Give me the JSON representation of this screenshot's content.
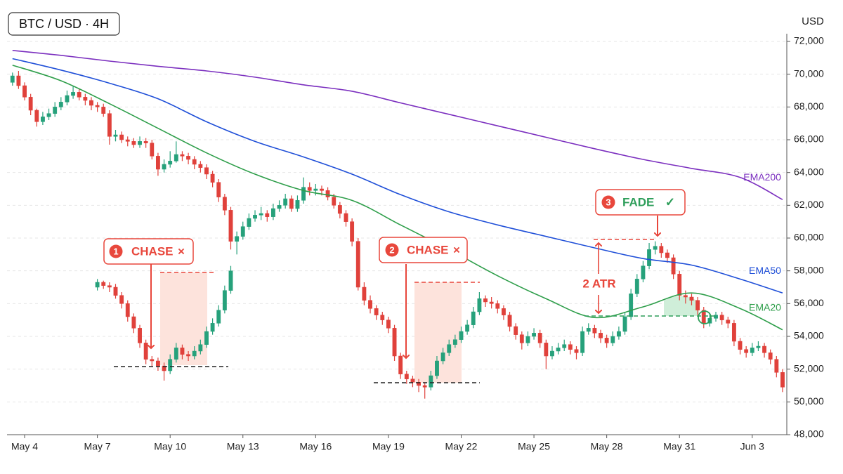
{
  "chart_data": {
    "type": "candlestick",
    "title": "BTC / USD · 4H",
    "y_label": "USD",
    "xlim": [
      -0.9,
      127.7
    ],
    "ylim": [
      48000,
      72000
    ],
    "grid": true,
    "up_color": "#26a17b",
    "down_color": "#e0413b",
    "xticks": [
      {
        "value": 2,
        "label": "May 4"
      },
      {
        "value": 14,
        "label": "May 7"
      },
      {
        "value": 26,
        "label": "May 10"
      },
      {
        "value": 38,
        "label": "May 13"
      },
      {
        "value": 50,
        "label": "May 16"
      },
      {
        "value": 62,
        "label": "May 19"
      },
      {
        "value": 74,
        "label": "May 22"
      },
      {
        "value": 86,
        "label": "May 25"
      },
      {
        "value": 98,
        "label": "May 28"
      },
      {
        "value": 110,
        "label": "May 31"
      },
      {
        "value": 122,
        "label": "Jun 3"
      }
    ],
    "yticks": [
      {
        "value": 48000,
        "label": "48,000"
      },
      {
        "value": 50000,
        "label": "50,000"
      },
      {
        "value": 52000,
        "label": "52,000"
      },
      {
        "value": 54000,
        "label": "54,000"
      },
      {
        "value": 56000,
        "label": "56,000"
      },
      {
        "value": 58000,
        "label": "58,000"
      },
      {
        "value": 60000,
        "label": "60,000"
      },
      {
        "value": 62000,
        "label": "62,000"
      },
      {
        "value": 64000,
        "label": "64,000"
      },
      {
        "value": 66000,
        "label": "66,000"
      },
      {
        "value": 68000,
        "label": "68,000"
      },
      {
        "value": 70000,
        "label": "70,000"
      },
      {
        "value": 72000,
        "label": "72,000"
      }
    ],
    "candles": [
      {
        "x": [
          0,
          1,
          2,
          3,
          4,
          5,
          6,
          7,
          8,
          9,
          10,
          11,
          12,
          13,
          14,
          15,
          16,
          17,
          18,
          19,
          20,
          21,
          22,
          23,
          24,
          25,
          26,
          27,
          28,
          29,
          30,
          31,
          32,
          33,
          34,
          35,
          36,
          37,
          38,
          39,
          40,
          41,
          42,
          43,
          44,
          45,
          46,
          47,
          48,
          49,
          50,
          51,
          52,
          53,
          54,
          55,
          56,
          57,
          58,
          59,
          60,
          61,
          62,
          63,
          64,
          65,
          66,
          67,
          68,
          69,
          70,
          71,
          72,
          73,
          74,
          75,
          76,
          77,
          78,
          79,
          80,
          81,
          82,
          83,
          84,
          85,
          86,
          87,
          88,
          89,
          90,
          91,
          92,
          93,
          94,
          95,
          96,
          97,
          98,
          99,
          100,
          101,
          102,
          103,
          104,
          105,
          106,
          107,
          108,
          109,
          110,
          111,
          112,
          113,
          114,
          115,
          116,
          117,
          118,
          119,
          120,
          121,
          122,
          123,
          124,
          125,
          126,
          127
        ],
        "open": [
          69500,
          69900,
          69300,
          68600,
          67800,
          67100,
          67400,
          67600,
          68000,
          68300,
          68700,
          68900,
          68600,
          68400,
          68100,
          68000,
          67600,
          66200,
          66300,
          66000,
          65900,
          65700,
          65900,
          65800,
          65000,
          64200,
          64500,
          64700,
          65100,
          65000,
          64800,
          64500,
          64300,
          63900,
          63400,
          62500,
          61700,
          59800,
          60100,
          60700,
          61200,
          61400,
          61500,
          61300,
          61800,
          62000,
          62400,
          61800,
          62300,
          63100,
          62900,
          63000,
          62900,
          62500,
          62000,
          61500,
          61000,
          59800,
          57000,
          56200,
          55700,
          55300,
          55000,
          54500,
          52800,
          51700,
          51400,
          51200,
          51000,
          50900,
          51600,
          52500,
          53000,
          53500,
          53800,
          54300,
          54700,
          55500,
          56300,
          56100,
          56000,
          55700,
          55300,
          54600,
          54100,
          53600,
          54000,
          54200,
          53600,
          52800,
          53100,
          53300,
          53500,
          53200,
          53000,
          54300,
          54500,
          54200,
          53900,
          53600,
          54000,
          54300,
          55200,
          56600,
          57500,
          58300,
          59300,
          59500,
          59100,
          58800,
          57800,
          56500,
          56400,
          56200,
          55600,
          54800,
          55100,
          55300,
          55000,
          54800,
          53700,
          53200,
          53000,
          53300,
          53400,
          53000,
          52600,
          51800
        ],
        "high": [
          70100,
          70200,
          69500,
          68800,
          67900,
          67700,
          67900,
          68300,
          68600,
          69000,
          69300,
          69100,
          68800,
          68600,
          68300,
          68200,
          67800,
          66600,
          66500,
          66200,
          66100,
          66200,
          66100,
          66000,
          65200,
          64800,
          65300,
          65900,
          65300,
          65200,
          65000,
          64700,
          64500,
          64100,
          63600,
          62700,
          61900,
          60400,
          61000,
          61500,
          61700,
          61900,
          61700,
          62100,
          62300,
          62700,
          62600,
          62600,
          63700,
          63400,
          63300,
          63200,
          63100,
          62700,
          62200,
          61700,
          61200,
          60000,
          57300,
          56500,
          55900,
          55500,
          55200,
          54700,
          53000,
          51900,
          51600,
          51400,
          51200,
          51900,
          52800,
          53300,
          53800,
          54100,
          54600,
          55000,
          55800,
          56700,
          56500,
          56400,
          56200,
          55900,
          55500,
          54800,
          54300,
          54300,
          54500,
          54400,
          53800,
          53400,
          53600,
          53800,
          53700,
          53400,
          54600,
          54800,
          54700,
          54400,
          54100,
          54300,
          54600,
          55500,
          56900,
          57800,
          58600,
          59700,
          59800,
          59700,
          59300,
          59000,
          58000,
          56800,
          56600,
          56400,
          55800,
          55400,
          55500,
          55500,
          55200,
          55000,
          53900,
          53400,
          53600,
          53700,
          53600,
          53200,
          52800,
          52000
        ],
        "low": [
          69300,
          69100,
          68400,
          67500,
          66800,
          66900,
          67200,
          67400,
          67800,
          68100,
          68500,
          68400,
          68100,
          67800,
          67700,
          67400,
          65700,
          65900,
          65800,
          65600,
          65500,
          65500,
          65500,
          64800,
          63800,
          64000,
          64300,
          64600,
          64700,
          64500,
          64200,
          64000,
          63600,
          63100,
          62200,
          61400,
          59300,
          59000,
          59900,
          60500,
          61000,
          61100,
          61000,
          61100,
          61600,
          61800,
          61600,
          61600,
          62100,
          62600,
          62600,
          62600,
          62300,
          61800,
          61200,
          60700,
          59500,
          56800,
          55900,
          55400,
          55000,
          54700,
          54200,
          52500,
          51400,
          51100,
          50900,
          50600,
          50200,
          50700,
          51400,
          52300,
          52800,
          53300,
          53600,
          54100,
          54500,
          55300,
          55800,
          55700,
          55400,
          55000,
          54300,
          53800,
          53200,
          53400,
          53800,
          53300,
          52000,
          52600,
          52900,
          53100,
          52900,
          52600,
          52800,
          54100,
          53900,
          53600,
          53300,
          53400,
          53800,
          54100,
          55000,
          56400,
          57300,
          58100,
          59000,
          58800,
          58500,
          57500,
          56200,
          56000,
          55900,
          55300,
          54500,
          54600,
          54900,
          54700,
          54500,
          53400,
          52900,
          52700,
          52800,
          53100,
          52700,
          52300,
          51500,
          50600
        ],
        "close": [
          69900,
          69300,
          68600,
          67800,
          67100,
          67400,
          67600,
          68000,
          68300,
          68700,
          68900,
          68600,
          68400,
          68100,
          68000,
          67600,
          66200,
          66300,
          66000,
          65900,
          65700,
          65900,
          65800,
          65000,
          64200,
          64500,
          64700,
          65100,
          65000,
          64800,
          64500,
          64300,
          63900,
          63400,
          62500,
          61700,
          59800,
          60100,
          60700,
          61200,
          61400,
          61500,
          61300,
          61800,
          62000,
          62400,
          61800,
          62300,
          63100,
          62900,
          63000,
          62900,
          62500,
          62000,
          61500,
          61000,
          59800,
          57000,
          56200,
          55700,
          55300,
          55000,
          54500,
          52800,
          51700,
          51400,
          51200,
          51000,
          50900,
          51600,
          52500,
          53000,
          53500,
          53800,
          54300,
          54700,
          55500,
          56300,
          56100,
          56000,
          55700,
          55300,
          54600,
          54100,
          53600,
          54000,
          54200,
          53600,
          52800,
          53100,
          53300,
          53500,
          53200,
          53000,
          54300,
          54500,
          54200,
          53900,
          53600,
          54000,
          54300,
          55200,
          56600,
          57500,
          58300,
          59300,
          59500,
          59100,
          58800,
          57800,
          56500,
          56400,
          56200,
          55600,
          54800,
          55100,
          55300,
          55000,
          54800,
          53700,
          53200,
          53000,
          53300,
          53400,
          53000,
          52600,
          51800,
          50900
        ]
      },
      {
        "x": [
          14,
          15,
          16,
          17,
          18,
          19,
          20,
          21,
          22,
          23,
          24,
          25,
          26,
          27,
          28,
          29,
          30,
          31,
          32,
          33,
          34,
          35,
          36
        ],
        "open": [
          57000,
          57300,
          57100,
          57000,
          56500,
          56000,
          55200,
          54500,
          53600,
          52600,
          52500,
          52200,
          51900,
          52600,
          53300,
          52900,
          52800,
          53100,
          53500,
          54300,
          54800,
          55600,
          56800
        ],
        "high": [
          57500,
          57400,
          57300,
          57200,
          56700,
          56200,
          55400,
          54700,
          53800,
          52800,
          52700,
          52400,
          52900,
          53600,
          53500,
          53100,
          53400,
          53800,
          54600,
          55100,
          55900,
          57100,
          58300
        ],
        "low": [
          56800,
          56900,
          56700,
          56300,
          55700,
          54900,
          54200,
          53300,
          52300,
          52200,
          51900,
          51300,
          51700,
          52400,
          52600,
          52500,
          52600,
          52900,
          53300,
          54100,
          54600,
          55400,
          56600
        ],
        "close": [
          57300,
          57100,
          57000,
          56500,
          56000,
          55200,
          54500,
          53600,
          52600,
          52500,
          52200,
          51900,
          52600,
          53300,
          52900,
          52800,
          53100,
          53500,
          54300,
          54800,
          55600,
          56800,
          58000
        ]
      }
    ],
    "emas": [
      {
        "name": "EMA200",
        "color": "#7b2fbf",
        "x": [
          0,
          8,
          16,
          24,
          32,
          40,
          48,
          56,
          64,
          72,
          80,
          88,
          96,
          104,
          112,
          120,
          127
        ],
        "values": [
          71450,
          71150,
          70800,
          70480,
          70200,
          69820,
          69350,
          68960,
          68250,
          67550,
          66850,
          66150,
          65450,
          64800,
          64250,
          63700,
          62350
        ]
      },
      {
        "name": "EMA50",
        "color": "#1f4fd8",
        "x": [
          0,
          8,
          16,
          24,
          32,
          40,
          48,
          56,
          64,
          72,
          80,
          88,
          96,
          104,
          112,
          120,
          127
        ],
        "values": [
          70950,
          70250,
          69450,
          68500,
          67100,
          65900,
          64950,
          63900,
          62650,
          61600,
          60800,
          60100,
          59400,
          58750,
          58350,
          57500,
          56650
        ]
      },
      {
        "name": "EMA20",
        "color": "#2e9e4a",
        "x": [
          0,
          8,
          16,
          24,
          32,
          40,
          48,
          56,
          64,
          72,
          80,
          88,
          96,
          104,
          112,
          120,
          127
        ],
        "values": [
          70550,
          69600,
          68200,
          66700,
          65200,
          63900,
          62900,
          62300,
          60800,
          59300,
          57700,
          56300,
          55150,
          55800,
          56650,
          55700,
          54400
        ]
      }
    ],
    "annotations": [
      {
        "number": "1",
        "text": "CHASE",
        "mark": "×"
      },
      {
        "number": "2",
        "text": "CHASE",
        "mark": "×"
      },
      {
        "number": "3",
        "text": "FADE",
        "mark": "✓"
      },
      {
        "text": "2 ATR"
      }
    ]
  }
}
